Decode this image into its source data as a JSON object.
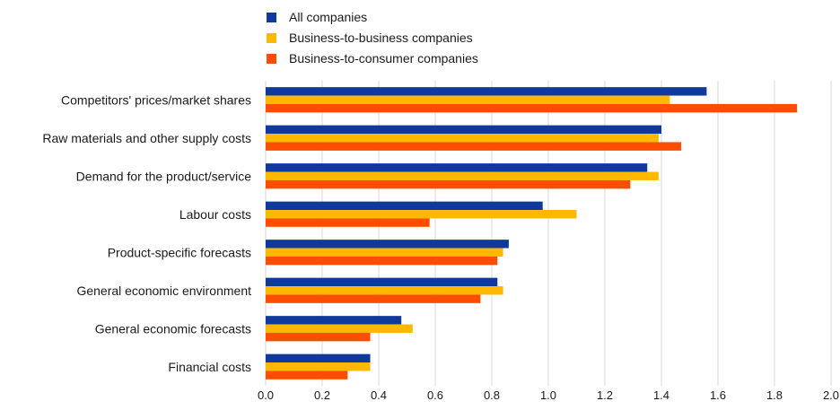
{
  "chart_data": {
    "type": "bar",
    "orientation": "horizontal",
    "categories": [
      "Competitors' prices/market shares",
      "Raw materials and other supply costs",
      "Demand for the product/service",
      "Labour costs",
      "Product-specific forecasts",
      "General economic environment",
      "General economic forecasts",
      "Financial costs"
    ],
    "series": [
      {
        "name": "All companies",
        "color": "#0f3a9c",
        "values": [
          1.56,
          1.4,
          1.35,
          0.98,
          0.86,
          0.82,
          0.48,
          0.37
        ]
      },
      {
        "name": "Business-to-business companies",
        "color": "#ffb800",
        "values": [
          1.43,
          1.39,
          1.39,
          1.1,
          0.84,
          0.84,
          0.52,
          0.37
        ]
      },
      {
        "name": "Business-to-consumer companies",
        "color": "#ff4d00",
        "values": [
          1.88,
          1.47,
          1.29,
          0.58,
          0.82,
          0.76,
          0.37,
          0.29
        ]
      }
    ],
    "xlim": [
      0,
      2.0
    ],
    "xticks": [
      "0.0",
      "0.2",
      "0.4",
      "0.6",
      "0.8",
      "1.0",
      "1.2",
      "1.4",
      "1.6",
      "1.8",
      "2.0"
    ],
    "grid": true,
    "legend_position": "top-left"
  }
}
